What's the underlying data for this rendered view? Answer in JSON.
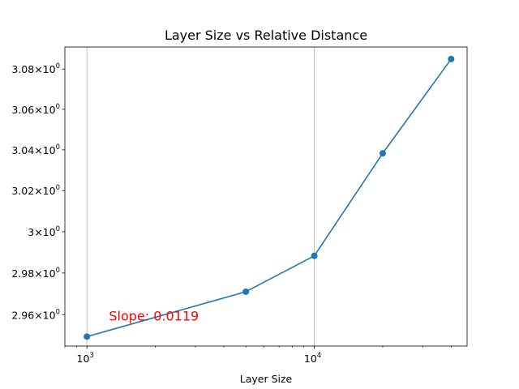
{
  "chart_data": {
    "type": "line",
    "title": "Layer Size vs Relative Distance",
    "xlabel": "Layer Size",
    "ylabel": "",
    "x_scale": "log",
    "y_scale": "log",
    "xlim": [
      800,
      47000
    ],
    "ylim": [
      2.945,
      3.091
    ],
    "grid": {
      "x_major": true,
      "y": false
    },
    "x_ticks": [
      {
        "value": 1000,
        "base": "10",
        "exp": "3"
      },
      {
        "value": 10000,
        "base": "10",
        "exp": "4"
      }
    ],
    "y_ticks": [
      {
        "value": 2.96,
        "mantissa": "2.96",
        "exp": "0"
      },
      {
        "value": 2.98,
        "mantissa": "2.98",
        "exp": "0"
      },
      {
        "value": 3.0,
        "mantissa": "3",
        "exp": "0"
      },
      {
        "value": 3.02,
        "mantissa": "3.02",
        "exp": "0"
      },
      {
        "value": 3.04,
        "mantissa": "3.04",
        "exp": "0"
      },
      {
        "value": 3.06,
        "mantissa": "3.06",
        "exp": "0"
      },
      {
        "value": 3.08,
        "mantissa": "3.08",
        "exp": "0"
      }
    ],
    "series": [
      {
        "color": "#1f77b4",
        "marker": "circle",
        "x": [
          1000,
          5000,
          10000,
          20000,
          40000
        ],
        "y": [
          2.9495,
          2.971,
          2.9883,
          3.0383,
          3.085
        ]
      }
    ],
    "annotation": {
      "text": "Slope: 0.0119",
      "color": "#ff0000",
      "x": 1250,
      "y": 2.9595
    }
  }
}
